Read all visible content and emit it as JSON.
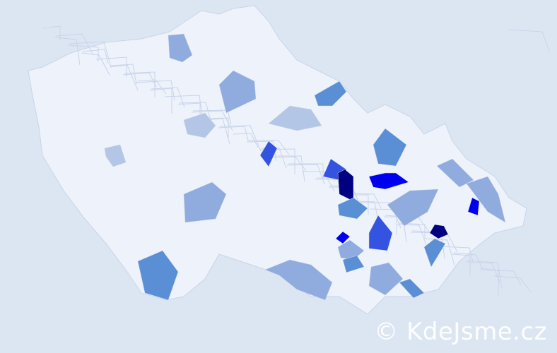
{
  "watermark": "© KdeJsme.cz",
  "colors": {
    "background": "#dce6f2",
    "country_fill": "#eef2fa",
    "border": "#c9d4ea",
    "level_1": "#b4c6e6",
    "level_2": "#90acdf",
    "level_3": "#5a8fd6",
    "level_4": "#3353e0",
    "level_5": "#0000ee",
    "level_6": "#000080"
  }
}
